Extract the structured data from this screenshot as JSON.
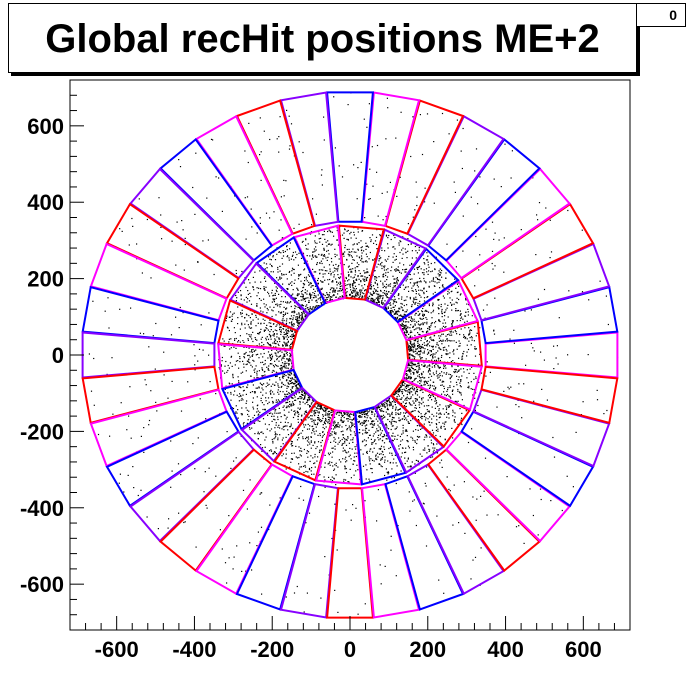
{
  "chart_data": {
    "type": "scatter",
    "title": "Global recHit positions ME+2",
    "entries_label": "0",
    "xlim": [
      -720,
      720
    ],
    "ylim": [
      -720,
      720
    ],
    "xticks": [
      -600,
      -400,
      -200,
      0,
      200,
      400,
      600
    ],
    "yticks": [
      600,
      400,
      200,
      0,
      -200,
      -400,
      -600
    ],
    "rings": [
      {
        "name": "inner",
        "r_inner": 150,
        "r_outer": 340,
        "chambers": 18
      },
      {
        "name": "outer",
        "r_inner": 350,
        "r_outer": 690,
        "chambers": 36
      }
    ],
    "point_color": "#000000",
    "chamber_colors": [
      "#ff0000",
      "#ff00ff",
      "#0000ff",
      "#8800ff"
    ],
    "grid": false,
    "legend": "none"
  }
}
